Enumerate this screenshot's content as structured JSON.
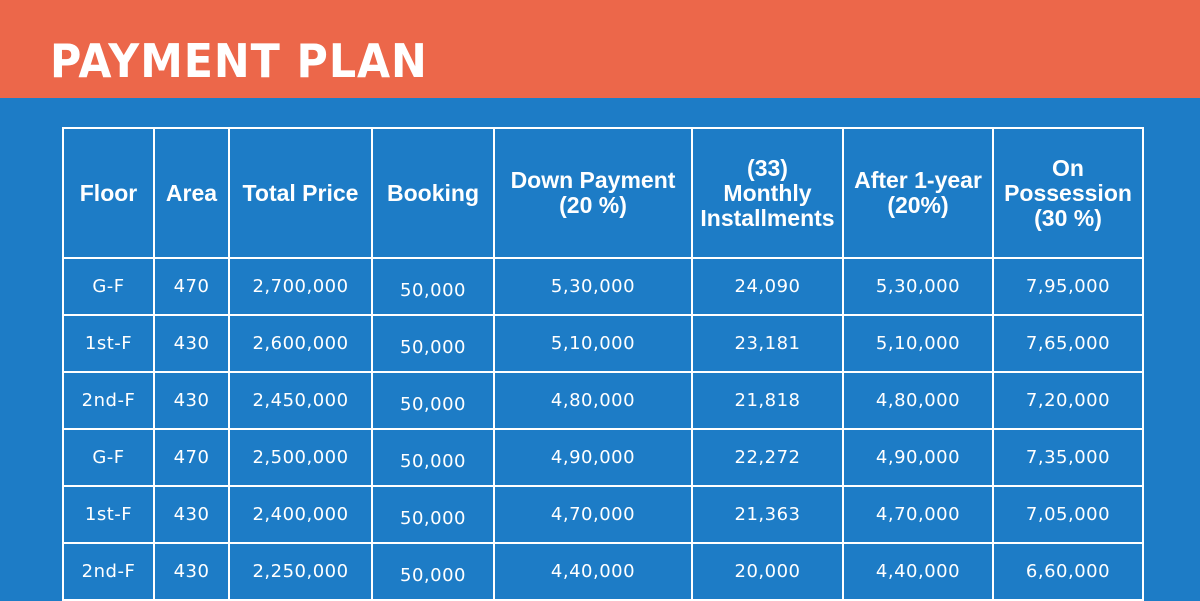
{
  "header": {
    "title": "PAYMENT PLAN",
    "banner_color": "#ec674a",
    "background_color": "#1d7cc6"
  },
  "table": {
    "columns": [
      "Floor",
      "Area",
      "Total Price",
      "Booking",
      "Down Payment\n(20 %)",
      "(33)\nMonthly\nInstallments",
      "After 1-year\n(20%)",
      "On\nPossession\n(30 %)"
    ],
    "rows": [
      [
        "G-F",
        "470",
        "2,700,000",
        "50,000",
        "5,30,000",
        "24,090",
        "5,30,000",
        "7,95,000"
      ],
      [
        "1st-F",
        "430",
        "2,600,000",
        "50,000",
        "5,10,000",
        "23,181",
        "5,10,000",
        "7,65,000"
      ],
      [
        "2nd-F",
        "430",
        "2,450,000",
        "50,000",
        "4,80,000",
        "21,818",
        "4,80,000",
        "7,20,000"
      ],
      [
        "G-F",
        "470",
        "2,500,000",
        "50,000",
        "4,90,000",
        "22,272",
        "4,90,000",
        "7,35,000"
      ],
      [
        "1st-F",
        "430",
        "2,400,000",
        "50,000",
        "4,70,000",
        "21,363",
        "4,70,000",
        "7,05,000"
      ],
      [
        "2nd-F",
        "430",
        "2,250,000",
        "50,000",
        "4,40,000",
        "20,000",
        "4,40,000",
        "6,60,000"
      ]
    ]
  }
}
